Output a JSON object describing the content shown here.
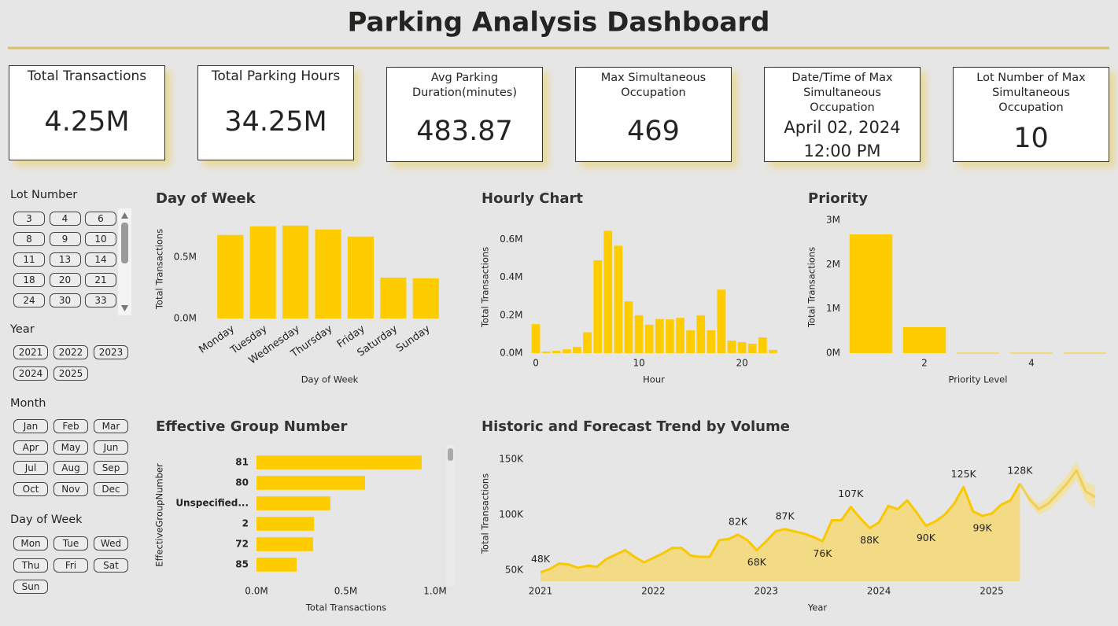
{
  "title": "Parking Analysis Dashboard",
  "cards": [
    {
      "title": "Total Transactions",
      "value": "4.25M"
    },
    {
      "title": "Total Parking Hours",
      "value": "34.25M"
    },
    {
      "title": "Avg Parking Duration(minutes)",
      "value": 483.87
    },
    {
      "title": "Max Simultaneous Occupation",
      "value": 469
    },
    {
      "title": "Date/Time of Max Simultaneous Occupation",
      "value": "April 02, 2024 12:00 PM"
    },
    {
      "title": "Lot Number of Max Simultaneous Occupation",
      "value": 10
    }
  ],
  "slicers": [
    {
      "title": "Lot Number",
      "options": [
        3,
        4,
        6,
        8,
        9,
        10,
        11,
        13,
        14,
        18,
        20,
        21,
        24,
        30,
        33
      ]
    },
    {
      "title": "Year",
      "options": [
        2021,
        2022,
        2023,
        2024,
        2025
      ]
    },
    {
      "title": "Month",
      "options": [
        "Jan",
        "Feb",
        "Mar",
        "Apr",
        "May",
        "Jun",
        "Jul",
        "Aug",
        "Sep",
        "Oct",
        "Nov",
        "Dec"
      ]
    },
    {
      "title": "Day of Week",
      "options": [
        "Mon",
        "Tue",
        "Wed",
        "Thu",
        "Fri",
        "Sat",
        "Sun"
      ]
    }
  ],
  "chart_data": [
    {
      "type": "bar",
      "title": "Day of Week",
      "x_label": "Day of Week",
      "y_label": "Total Transactions",
      "categories": [
        "Monday",
        "Tuesday",
        "Wednesday",
        "Thursday",
        "Friday",
        "Saturday",
        "Sunday"
      ],
      "values": [
        680000,
        750000,
        756000,
        724000,
        667000,
        333000,
        327000
      ],
      "color": "#ffcc00",
      "ylim": [
        0,
        800000
      ],
      "yticks": [
        {
          "value": 0,
          "label": "0.0M"
        },
        {
          "value": 500000,
          "label": "0.5M"
        }
      ]
    },
    {
      "type": "bar",
      "title": "Hourly Chart",
      "x_label": "Hour",
      "y_label": "Total Transactions",
      "x": [
        0,
        1,
        2,
        3,
        4,
        5,
        6,
        7,
        8,
        9,
        10,
        11,
        12,
        13,
        14,
        15,
        16,
        17,
        18,
        19,
        20,
        21,
        22,
        23
      ],
      "values": [
        153000,
        8000,
        12000,
        20000,
        33000,
        110000,
        490000,
        646000,
        567000,
        273000,
        200000,
        150000,
        180000,
        178000,
        186000,
        120000,
        200000,
        120000,
        335000,
        66000,
        58000,
        50000,
        83000,
        17000
      ],
      "color": "#ffcc00",
      "xlim": [
        -0.5,
        23.5
      ],
      "xticks": [
        0,
        10,
        20
      ],
      "ylim": [
        0,
        660000
      ],
      "yticks": [
        {
          "value": 0,
          "label": "0.0M"
        },
        {
          "value": 200000,
          "label": "0.2M"
        },
        {
          "value": 400000,
          "label": "0.4M"
        },
        {
          "value": 600000,
          "label": "0.6M"
        }
      ]
    },
    {
      "type": "bar",
      "title": "Priority",
      "x_label": "Priority Level",
      "y_label": "Total Transactions",
      "x": [
        1,
        2,
        3,
        4,
        5
      ],
      "values": [
        2680000,
        586000,
        8000,
        8000,
        8000
      ],
      "color": "#ffcc00",
      "xlim": [
        0.5,
        5.5
      ],
      "xticks": [
        2,
        4
      ],
      "ylim": [
        0,
        3000000
      ],
      "yticks": [
        {
          "value": 0,
          "label": "0M"
        },
        {
          "value": 1000000,
          "label": "1M"
        },
        {
          "value": 2000000,
          "label": "2M"
        },
        {
          "value": 3000000,
          "label": "3M"
        }
      ]
    },
    {
      "type": "barh",
      "title": "Effective Group Number",
      "x_label": "Total Transactions",
      "y_label": "EffectiveGroupNumber",
      "categories": [
        "81",
        "80",
        "Unspecified...",
        "2",
        "72",
        "85"
      ],
      "values": [
        925000,
        608000,
        414000,
        322000,
        317000,
        225000
      ],
      "color": "#ffcc00",
      "xlim": [
        0,
        1000000
      ],
      "xticks": [
        {
          "value": 0,
          "label": "0.0M"
        },
        {
          "value": 500000,
          "label": "0.5M"
        },
        {
          "value": 1000000,
          "label": "1.0M"
        }
      ]
    },
    {
      "type": "line",
      "title": "Historic and Forecast Trend by Volume",
      "x_label": "Year",
      "y_label": "Total Transactions",
      "xlim": [
        "2021-01",
        "2025-12"
      ],
      "xticks": [
        2021,
        2022,
        2023,
        2024,
        2025
      ],
      "ylim": [
        40000,
        160000
      ],
      "yticks": [
        {
          "value": 50000,
          "label": "50K"
        },
        {
          "value": 100000,
          "label": "100K"
        },
        {
          "value": 150000,
          "label": "150K"
        }
      ],
      "series": [
        {
          "color": "#f8c800",
          "area_color": "#f3db86",
          "x": [
            "2021-01",
            "2021-02",
            "2021-03",
            "2021-04",
            "2021-05",
            "2021-06",
            "2021-07",
            "2021-08",
            "2021-09",
            "2021-10",
            "2021-11",
            "2021-12",
            "2022-01",
            "2022-02",
            "2022-03",
            "2022-04",
            "2022-05",
            "2022-06",
            "2022-07",
            "2022-08",
            "2022-09",
            "2022-10",
            "2022-11",
            "2022-12",
            "2023-01",
            "2023-02",
            "2023-03",
            "2023-04",
            "2023-05",
            "2023-06",
            "2023-07",
            "2023-08",
            "2023-09",
            "2023-10",
            "2023-11",
            "2023-12",
            "2024-01",
            "2024-02",
            "2024-03",
            "2024-04",
            "2024-05",
            "2024-06",
            "2024-07",
            "2024-08",
            "2024-09",
            "2024-10",
            "2024-11",
            "2024-12",
            "2025-01",
            "2025-02",
            "2025-03",
            "2025-04"
          ],
          "values": [
            48000,
            51000,
            56000,
            55000,
            52000,
            54000,
            53000,
            60000,
            64000,
            68000,
            62000,
            57000,
            61000,
            65000,
            70000,
            70000,
            63000,
            62000,
            62000,
            77000,
            78000,
            82000,
            77000,
            68000,
            76000,
            85000,
            87000,
            85000,
            83000,
            80000,
            76000,
            95000,
            95000,
            107000,
            97000,
            88000,
            93000,
            108000,
            105000,
            113000,
            102000,
            90000,
            94000,
            100000,
            110000,
            125000,
            103000,
            99000,
            101000,
            109000,
            113000,
            128000
          ],
          "value_labels": [
            "48K",
            null,
            null,
            null,
            null,
            null,
            null,
            null,
            null,
            null,
            null,
            null,
            null,
            null,
            null,
            null,
            null,
            null,
            null,
            null,
            null,
            "82K",
            null,
            "68K",
            null,
            null,
            "87K",
            null,
            null,
            null,
            "76K",
            null,
            null,
            "107K",
            null,
            "88K",
            null,
            null,
            null,
            null,
            null,
            "90K",
            null,
            null,
            null,
            "125K",
            null,
            "99K",
            null,
            null,
            null,
            "128K"
          ]
        },
        {
          "color": "#f0cf55",
          "band_color": "#f1e2a8",
          "x": [
            "2025-04",
            "2025-05",
            "2025-06",
            "2025-07",
            "2025-08",
            "2025-09",
            "2025-10",
            "2025-11",
            "2025-12"
          ],
          "values": [
            128000,
            114000,
            105000,
            110000,
            119000,
            128000,
            140000,
            121000,
            116000
          ],
          "lower": [
            128000,
            110000,
            100000,
            104000,
            112000,
            121000,
            132000,
            112000,
            106000
          ],
          "upper": [
            128000,
            118000,
            110000,
            116000,
            126000,
            135000,
            148000,
            130000,
            126000
          ]
        }
      ]
    }
  ]
}
